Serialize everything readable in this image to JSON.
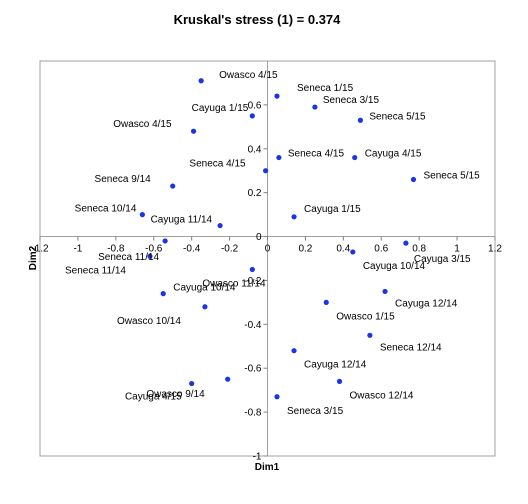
{
  "chart_data": {
    "type": "scatter",
    "title": "Kruskal's stress (1) = 0.374",
    "xlabel": "Dim1",
    "ylabel": "Dim2",
    "xlim": [
      -1.2,
      1.2
    ],
    "ylim": [
      -1,
      0.8
    ],
    "xticks": [
      -1.2,
      -1,
      -0.8,
      -0.6,
      -0.4,
      -0.2,
      0,
      0.2,
      0.4,
      0.6,
      0.8,
      1,
      1.2
    ],
    "yticks": [
      -1,
      -0.8,
      -0.6,
      -0.4,
      -0.2,
      0,
      0.2,
      0.4,
      0.6
    ],
    "xtick_labels": [
      "-1.2",
      "-1",
      "-0.8",
      "-0.6",
      "-0.4",
      "-0.2",
      "0",
      "0.2",
      "0.4",
      "0.6",
      "0.8",
      "1",
      "1.2"
    ],
    "ytick_labels": [
      "-1",
      "-0.8",
      "-0.6",
      "-0.4",
      "-0.2",
      "0",
      "0.2",
      "0.4",
      "0.6"
    ],
    "point_color": "#1a35e6",
    "grid": false,
    "points": [
      {
        "label": "Owasco 4/15",
        "x": -0.35,
        "y": 0.71
      },
      {
        "label": "Seneca 1/15",
        "x": 0.05,
        "y": 0.64
      },
      {
        "label": "Seneca 3/15",
        "x": 0.25,
        "y": 0.59
      },
      {
        "label": "Cayuga 1/15",
        "x": -0.08,
        "y": 0.55
      },
      {
        "label": "Seneca 5/15",
        "x": 0.49,
        "y": 0.53
      },
      {
        "label": "Owasco 4/15",
        "x": -0.39,
        "y": 0.48
      },
      {
        "label": "Seneca 4/15",
        "x": 0.06,
        "y": 0.36
      },
      {
        "label": "Cayuga 4/15",
        "x": 0.46,
        "y": 0.36
      },
      {
        "label": "Seneca 4/15",
        "x": -0.01,
        "y": 0.3
      },
      {
        "label": "Seneca 5/15",
        "x": 0.77,
        "y": 0.26
      },
      {
        "label": "Seneca 9/14",
        "x": -0.5,
        "y": 0.23
      },
      {
        "label": "Seneca 10/14",
        "x": -0.66,
        "y": 0.1
      },
      {
        "label": "Cayuga 1/15",
        "x": 0.14,
        "y": 0.09
      },
      {
        "label": "Cayuga 11/14",
        "x": -0.25,
        "y": 0.05
      },
      {
        "label": "Seneca 11/14",
        "x": -0.54,
        "y": -0.02
      },
      {
        "label": "Cayuga 3/15",
        "x": 0.73,
        "y": -0.03
      },
      {
        "label": "Cayuga 10/14",
        "x": 0.45,
        "y": -0.07
      },
      {
        "label": "Seneca 11/14",
        "x": -0.62,
        "y": -0.09
      },
      {
        "label": "Owasco 11/14",
        "x": -0.08,
        "y": -0.15
      },
      {
        "label": "Cayuga 12/14",
        "x": 0.62,
        "y": -0.25
      },
      {
        "label": "Cayuga 10/14",
        "x": -0.55,
        "y": -0.26
      },
      {
        "label": "Owasco 1/15",
        "x": 0.31,
        "y": -0.3
      },
      {
        "label": "Owasco 10/14",
        "x": -0.33,
        "y": -0.32
      },
      {
        "label": "Seneca 12/14",
        "x": 0.54,
        "y": -0.45
      },
      {
        "label": "Cayuga 12/14",
        "x": 0.14,
        "y": -0.52
      },
      {
        "label": "Owasco 12/14",
        "x": 0.38,
        "y": -0.66
      },
      {
        "label": "Owasco 9/14",
        "x": -0.21,
        "y": -0.65
      },
      {
        "label": "Cayuga 4/15",
        "x": -0.4,
        "y": -0.67
      },
      {
        "label": "Seneca 3/15",
        "x": 0.05,
        "y": -0.73
      }
    ]
  }
}
